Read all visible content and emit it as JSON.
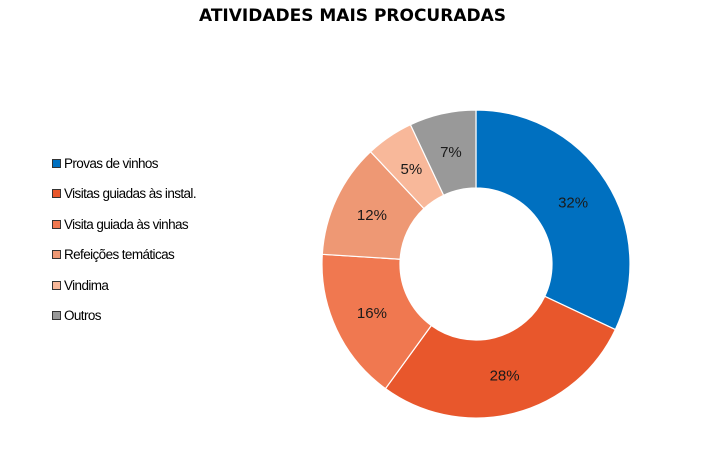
{
  "chart_data": {
    "type": "pie",
    "subtype": "donut",
    "title": "ATIVIDADES MAIS PROCURADAS",
    "legend_position": "left",
    "slices": [
      {
        "label": "Provas de vinhos",
        "value": 32,
        "display": "32%",
        "color": "#0070C0"
      },
      {
        "label": "Visitas guiadas às instal.",
        "value": 28,
        "display": "28%",
        "color": "#E8572C"
      },
      {
        "label": "Visita guiada às vinhas",
        "value": 16,
        "display": "16%",
        "color": "#F07850"
      },
      {
        "label": "Refeições temáticas",
        "value": 12,
        "display": "12%",
        "color": "#EE9874"
      },
      {
        "label": "Vindima",
        "value": 5,
        "display": "5%",
        "color": "#F8B89A"
      },
      {
        "label": "Outros",
        "value": 7,
        "display": "7%",
        "color": "#999999"
      }
    ]
  }
}
